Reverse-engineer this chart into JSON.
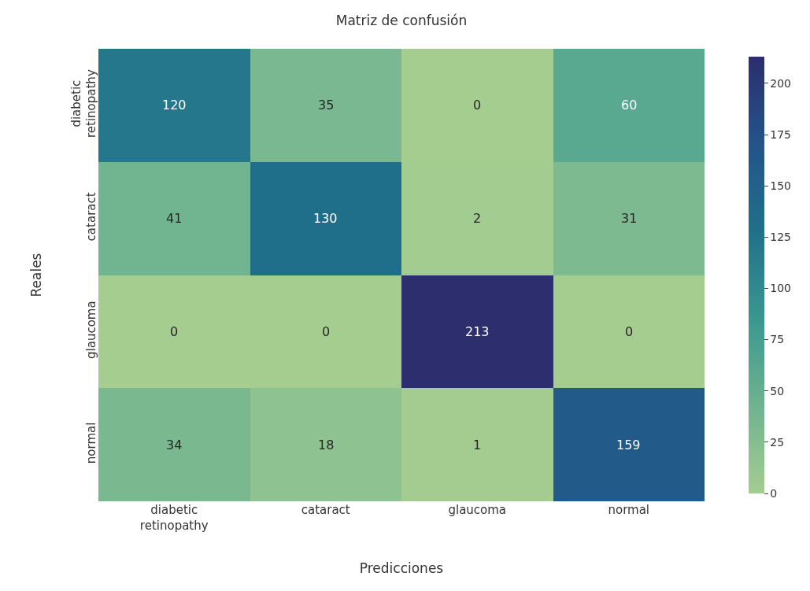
{
  "chart_data": {
    "type": "heatmap",
    "title": "Matriz de confusión",
    "xlabel": "Predicciones",
    "ylabel": "Reales",
    "categories": [
      "diabetic\nretinopathy",
      "cataract",
      "glaucoma",
      "normal"
    ],
    "y_categories": [
      "diabetic\nretinopathy",
      "cataract",
      "glaucoma",
      "normal"
    ],
    "cells": [
      [
        120,
        35,
        0,
        60
      ],
      [
        41,
        130,
        2,
        31
      ],
      [
        0,
        0,
        213,
        0
      ],
      [
        34,
        18,
        1,
        159
      ]
    ],
    "clim": [
      0,
      213
    ],
    "cticks": [
      0,
      25,
      50,
      75,
      100,
      125,
      150,
      175,
      200
    ],
    "data_labels": true
  }
}
